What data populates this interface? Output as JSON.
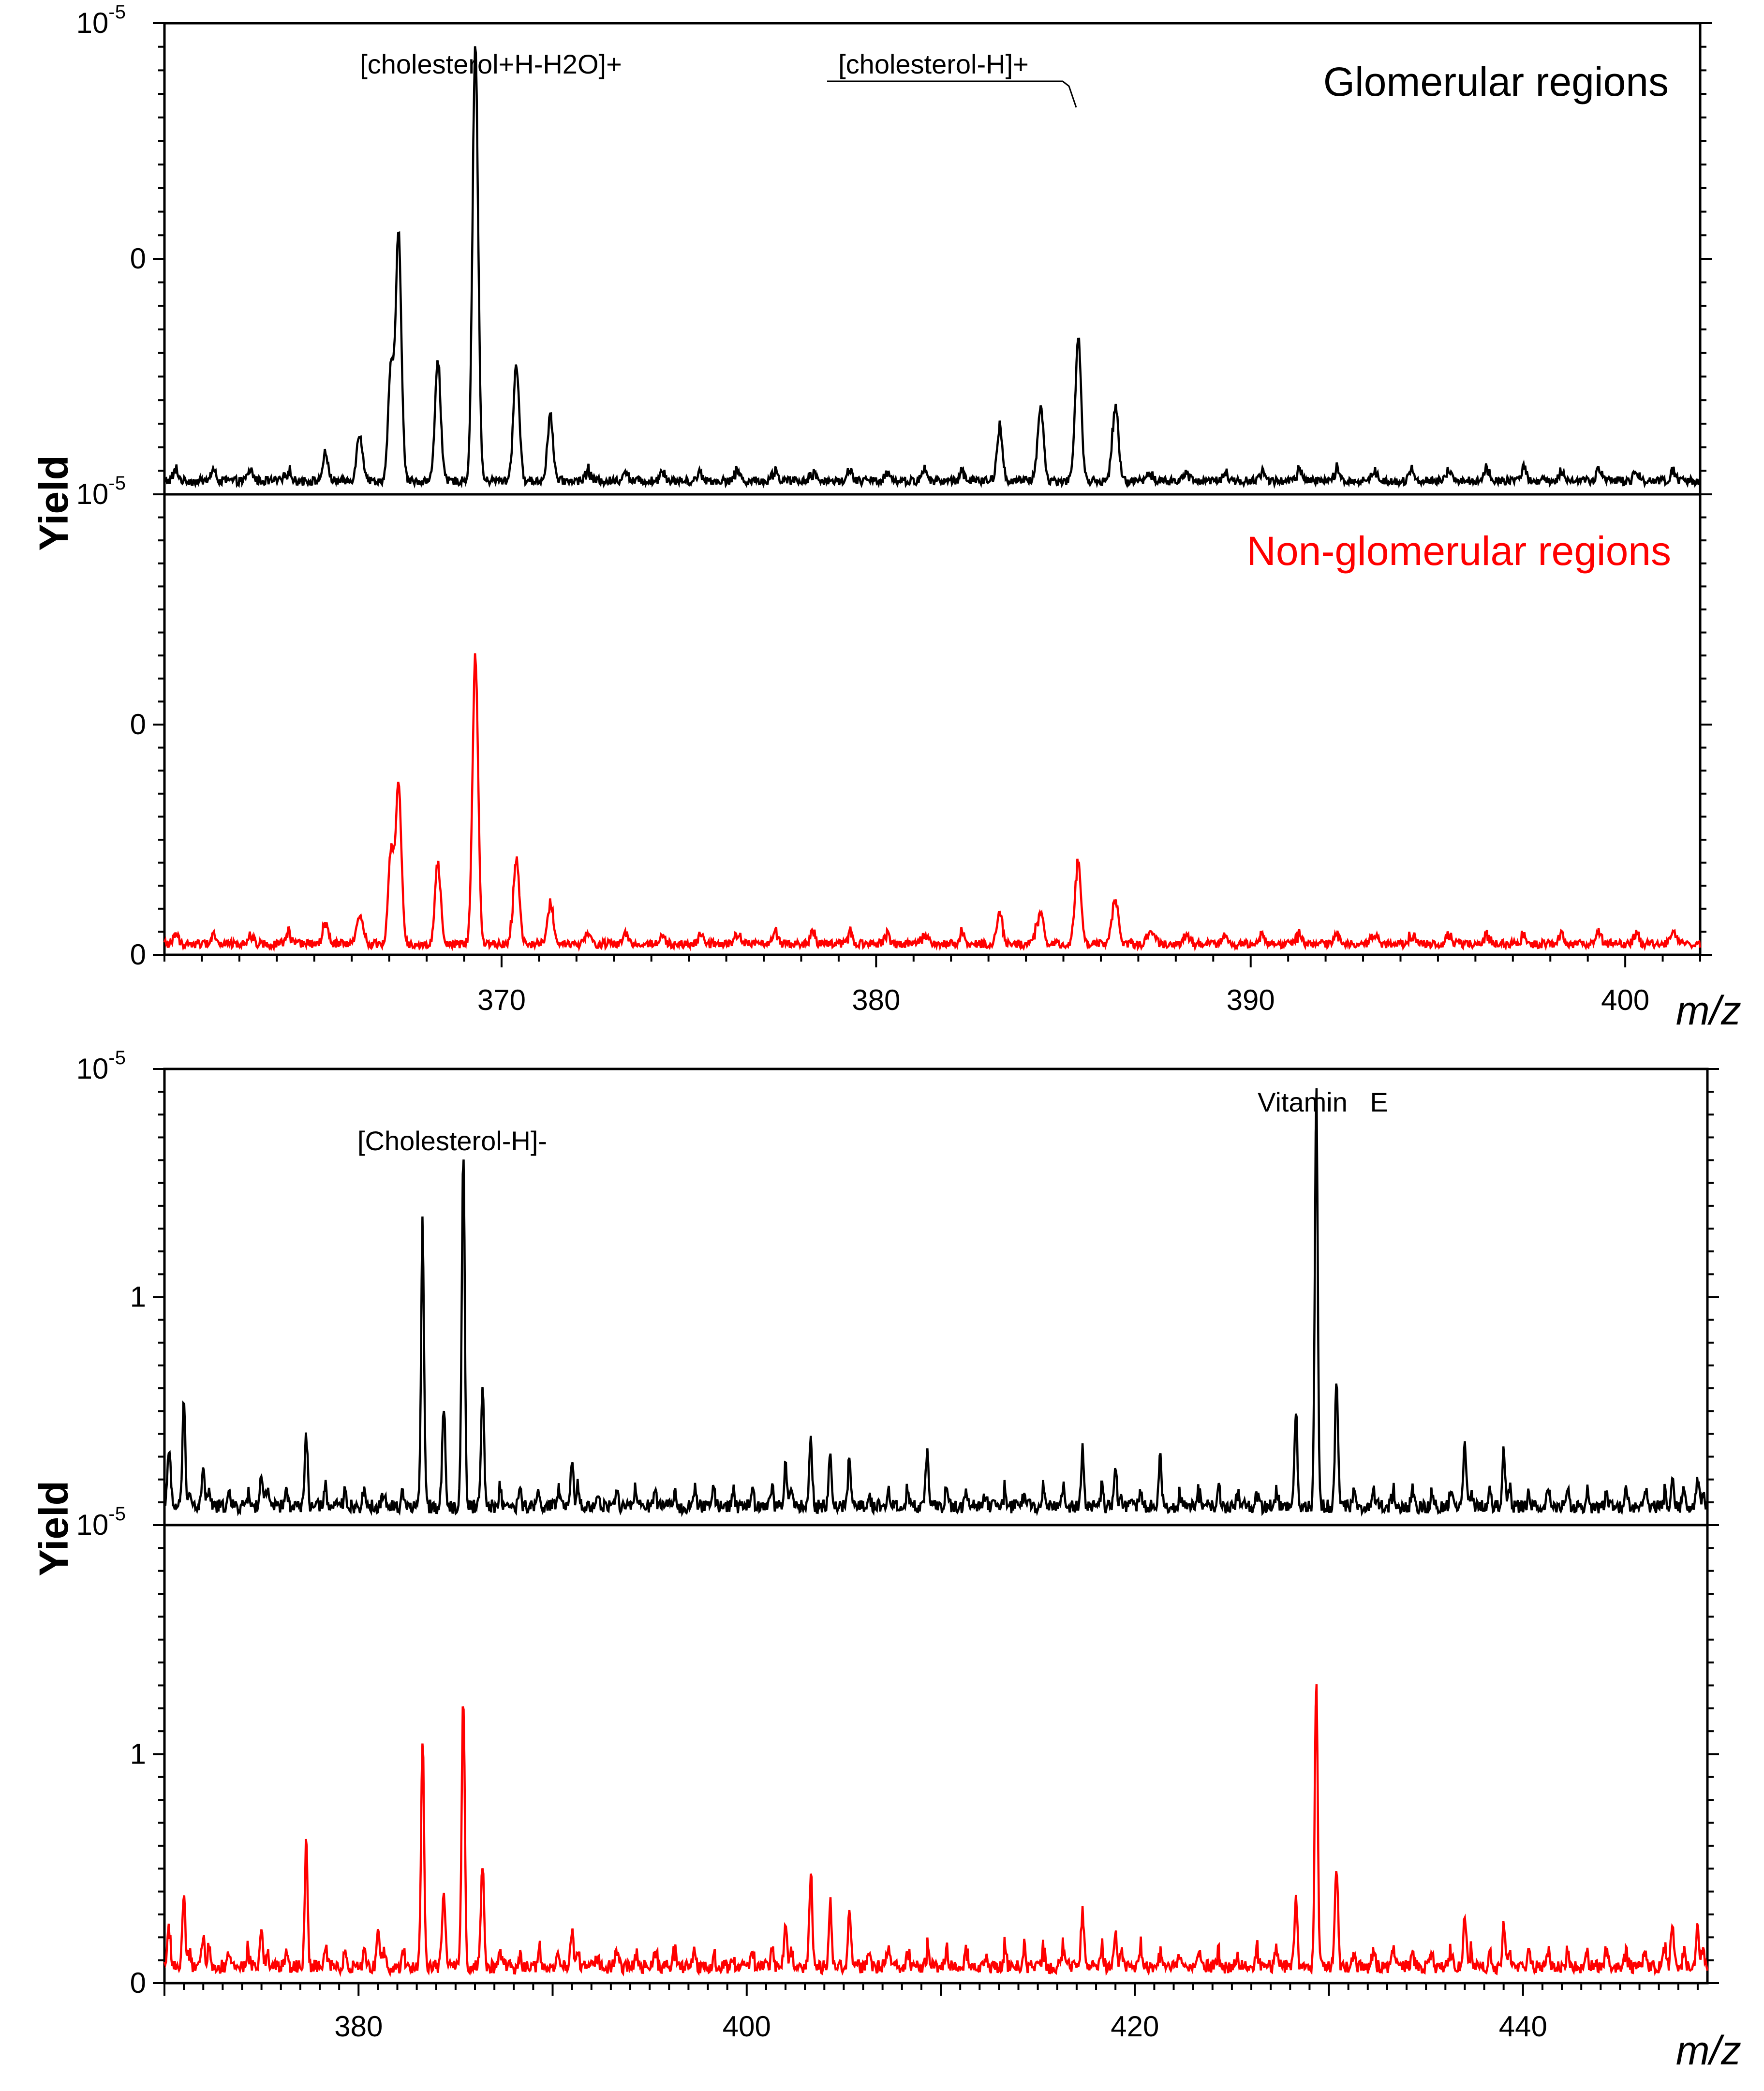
{
  "chart_data": [
    {
      "type": "line",
      "panel": "top",
      "xlabel": "m/z",
      "ylabel": "Yield",
      "xlim": [
        361,
        402
      ],
      "xticks": [
        370,
        380,
        390,
        400
      ],
      "grid": false,
      "series": [
        {
          "name": "Glomerular regions",
          "color": "#000000",
          "ytick_labels": [
            {
              "base": "10",
              "exp": "-5",
              "frac": 1.0
            },
            {
              "text": "0",
              "frac": 0.5
            }
          ],
          "peaks": [
            {
              "x": 365.3,
              "h": 0.03
            },
            {
              "x": 366.2,
              "h": 0.09
            },
            {
              "x": 367.05,
              "h": 0.24
            },
            {
              "x": 367.25,
              "h": 0.5
            },
            {
              "x": 368.3,
              "h": 0.24
            },
            {
              "x": 369.3,
              "h": 0.9
            },
            {
              "x": 370.4,
              "h": 0.24
            },
            {
              "x": 371.3,
              "h": 0.12
            },
            {
              "x": 383.3,
              "h": 0.09
            },
            {
              "x": 384.4,
              "h": 0.15
            },
            {
              "x": 385.4,
              "h": 0.3
            },
            {
              "x": 386.4,
              "h": 0.15
            }
          ],
          "baseline": 0.025
        },
        {
          "name": "Non-glomerular regions",
          "color": "#ff0000",
          "ytick_labels": [
            {
              "base": "10",
              "exp": "-5",
              "frac": 1.0
            },
            {
              "text": "0",
              "frac": 0.5
            },
            {
              "text": "0",
              "frac": 0.0
            }
          ],
          "peaks": [
            {
              "x": 365.3,
              "h": 0.02
            },
            {
              "x": 366.2,
              "h": 0.05
            },
            {
              "x": 367.05,
              "h": 0.2
            },
            {
              "x": 367.25,
              "h": 0.33
            },
            {
              "x": 368.3,
              "h": 0.15
            },
            {
              "x": 369.3,
              "h": 0.6
            },
            {
              "x": 370.4,
              "h": 0.18
            },
            {
              "x": 371.3,
              "h": 0.07
            },
            {
              "x": 383.3,
              "h": 0.05
            },
            {
              "x": 384.4,
              "h": 0.06
            },
            {
              "x": 385.4,
              "h": 0.17
            },
            {
              "x": 386.4,
              "h": 0.09
            },
            {
              "x": 387.4,
              "h": 0.02
            }
          ],
          "baseline": 0.02
        }
      ],
      "annotations": [
        {
          "text": "[cholesterol+H-H2O]+",
          "x": 369.3
        },
        {
          "text": "[cholesterol-H]+",
          "x": 385.4
        }
      ]
    },
    {
      "type": "line",
      "panel": "bottom",
      "xlabel": "m/z",
      "ylabel": "Yield",
      "xlim": [
        370,
        449.5
      ],
      "xticks": [
        380,
        400,
        420,
        440
      ],
      "grid": false,
      "series": [
        {
          "name": "",
          "color": "#000000",
          "ytick_labels": [
            {
              "base": "10",
              "exp": "-5",
              "frac": 1.0
            },
            {
              "text": "1",
              "frac": 0.5
            }
          ],
          "peaks": [
            {
              "x": 370.2,
              "h": 0.1
            },
            {
              "x": 371.0,
              "h": 0.23
            },
            {
              "x": 372.0,
              "h": 0.08
            },
            {
              "x": 375.0,
              "h": 0.07
            },
            {
              "x": 377.3,
              "h": 0.13
            },
            {
              "x": 383.3,
              "h": 0.58
            },
            {
              "x": 384.4,
              "h": 0.21
            },
            {
              "x": 385.4,
              "h": 0.78
            },
            {
              "x": 386.4,
              "h": 0.24
            },
            {
              "x": 391.0,
              "h": 0.09
            },
            {
              "x": 402.0,
              "h": 0.09
            },
            {
              "x": 403.3,
              "h": 0.11
            },
            {
              "x": 404.3,
              "h": 0.08
            },
            {
              "x": 405.3,
              "h": 0.08
            },
            {
              "x": 409.3,
              "h": 0.08
            },
            {
              "x": 417.3,
              "h": 0.09
            },
            {
              "x": 419.0,
              "h": 0.08
            },
            {
              "x": 421.3,
              "h": 0.08
            },
            {
              "x": 428.3,
              "h": 0.17
            },
            {
              "x": 429.35,
              "h": 0.88
            },
            {
              "x": 430.4,
              "h": 0.26
            },
            {
              "x": 437.0,
              "h": 0.14
            },
            {
              "x": 439.0,
              "h": 0.12
            },
            {
              "x": 447.7,
              "h": 0.07
            },
            {
              "x": 449.0,
              "h": 0.06
            }
          ],
          "baseline": 0.035
        },
        {
          "name": "",
          "color": "#ff0000",
          "ytick_labels": [
            {
              "base": "10",
              "exp": "-5",
              "frac": 1.0
            },
            {
              "text": "1",
              "frac": 0.5
            },
            {
              "text": "0",
              "frac": 0.0
            }
          ],
          "peaks": [
            {
              "x": 370.2,
              "h": 0.07
            },
            {
              "x": 371.0,
              "h": 0.15
            },
            {
              "x": 372.0,
              "h": 0.06
            },
            {
              "x": 375.0,
              "h": 0.07
            },
            {
              "x": 377.3,
              "h": 0.23
            },
            {
              "x": 381.0,
              "h": 0.07
            },
            {
              "x": 383.3,
              "h": 0.48
            },
            {
              "x": 384.4,
              "h": 0.15
            },
            {
              "x": 385.4,
              "h": 0.58
            },
            {
              "x": 386.4,
              "h": 0.21
            },
            {
              "x": 391.0,
              "h": 0.08
            },
            {
              "x": 402.0,
              "h": 0.09
            },
            {
              "x": 403.3,
              "h": 0.17
            },
            {
              "x": 404.3,
              "h": 0.1
            },
            {
              "x": 405.3,
              "h": 0.1
            },
            {
              "x": 417.3,
              "h": 0.08
            },
            {
              "x": 419.0,
              "h": 0.07
            },
            {
              "x": 428.3,
              "h": 0.12
            },
            {
              "x": 429.35,
              "h": 0.6
            },
            {
              "x": 430.4,
              "h": 0.2
            },
            {
              "x": 437.0,
              "h": 0.11
            },
            {
              "x": 439.0,
              "h": 0.09
            },
            {
              "x": 447.7,
              "h": 0.1
            },
            {
              "x": 449.0,
              "h": 0.09
            }
          ],
          "baseline": 0.03
        }
      ],
      "annotations": [
        {
          "text": "[Cholesterol-H]-",
          "x": 385.4
        },
        {
          "text": "Vitamin   E",
          "x": 429.35
        }
      ]
    }
  ]
}
